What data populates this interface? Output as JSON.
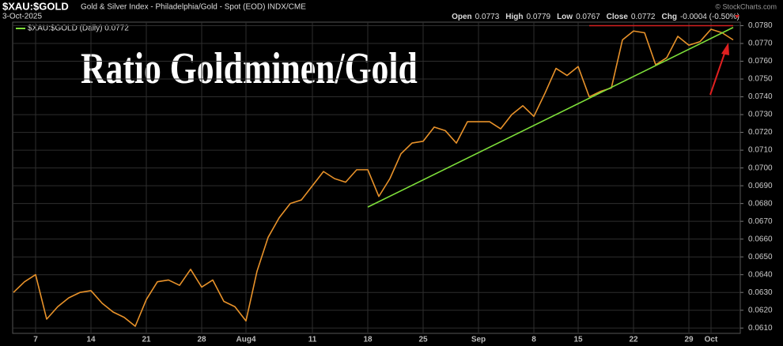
{
  "chart_data": {
    "type": "line",
    "symbol": "$XAU:$GOLD",
    "description": "Gold & Silver Index - Philadelphia/Gold - Spot (EOD)",
    "exchange": "INDX/CME",
    "date": "3-Oct-2025",
    "quote": [
      {
        "label": "Open",
        "value": "0.0773"
      },
      {
        "label": "High",
        "value": "0.0779"
      },
      {
        "label": "Low",
        "value": "0.0767"
      },
      {
        "label": "Close",
        "value": "0.0772"
      },
      {
        "label": "Chg",
        "value": "-0.0004 (-0.50%)"
      }
    ],
    "watermark": "© StockCharts.com",
    "title": "Ratio Goldminen/Gold",
    "categories": [
      null,
      null,
      "7",
      null,
      null,
      null,
      null,
      "14",
      null,
      null,
      null,
      null,
      "21",
      null,
      null,
      null,
      null,
      "28",
      null,
      null,
      null,
      "Aug4",
      null,
      null,
      null,
      null,
      null,
      "11",
      null,
      null,
      null,
      null,
      "18",
      null,
      null,
      null,
      null,
      "25",
      null,
      null,
      null,
      null,
      "Sep",
      null,
      null,
      null,
      null,
      "8",
      null,
      null,
      null,
      "15",
      null,
      null,
      null,
      null,
      "22",
      null,
      null,
      null,
      null,
      "29",
      null,
      "Oct",
      null,
      null
    ],
    "series": [
      {
        "name": "$XAU:$GOLD (Daily) 0.0772",
        "color": "#e8922a",
        "values": [
          0.063,
          0.0636,
          0.064,
          0.0615,
          0.0622,
          0.0627,
          0.063,
          0.0631,
          0.0624,
          0.0619,
          0.0616,
          0.0611,
          0.0626,
          0.0636,
          0.0637,
          0.0634,
          0.0643,
          0.0633,
          0.0637,
          0.0625,
          0.0622,
          0.0614,
          0.0642,
          0.0661,
          0.0672,
          0.068,
          0.0682,
          0.069,
          0.0698,
          0.0694,
          0.0692,
          0.0699,
          0.0699,
          0.0684,
          0.0694,
          0.0708,
          0.0714,
          0.0715,
          0.0723,
          0.0721,
          0.0714,
          0.0726,
          0.0726,
          0.0726,
          0.0722,
          0.073,
          0.0735,
          0.0729,
          0.0742,
          0.0756,
          0.0752,
          0.0757,
          0.074,
          0.0743,
          0.0745,
          0.0772,
          0.0777,
          0.0776,
          0.0758,
          0.0762,
          0.0774,
          0.0769,
          0.0771,
          0.0778,
          0.0776,
          0.0772
        ]
      }
    ],
    "trendline": {
      "color": "#7ee03a",
      "x": [
        32,
        65
      ],
      "values": [
        0.0678,
        0.0779
      ]
    },
    "resistance": {
      "color": "#d42020",
      "x": [
        52,
        65
      ],
      "values": [
        0.078,
        0.078
      ]
    },
    "ylim": [
      0.0607,
      0.0782
    ],
    "yticks": [
      {
        "value": 0.061,
        "label": "0.0610"
      },
      {
        "value": 0.062,
        "label": "0.0620"
      },
      {
        "value": 0.063,
        "label": "0.0630"
      },
      {
        "value": 0.064,
        "label": "0.0640"
      },
      {
        "value": 0.065,
        "label": "0.0650"
      },
      {
        "value": 0.066,
        "label": "0.0660"
      },
      {
        "value": 0.067,
        "label": "0.0670"
      },
      {
        "value": 0.068,
        "label": "0.0680"
      },
      {
        "value": 0.069,
        "label": "0.0690"
      },
      {
        "value": 0.07,
        "label": "0.0700"
      },
      {
        "value": 0.071,
        "label": "0.0710"
      },
      {
        "value": 0.072,
        "label": "0.0720"
      },
      {
        "value": 0.073,
        "label": "0.0730"
      },
      {
        "value": 0.074,
        "label": "0.0740"
      },
      {
        "value": 0.075,
        "label": "0.0750"
      },
      {
        "value": 0.076,
        "label": "0.0760"
      },
      {
        "value": 0.077,
        "label": "0.0770"
      },
      {
        "value": 0.078,
        "label": "0.0780"
      }
    ],
    "grid": true
  }
}
